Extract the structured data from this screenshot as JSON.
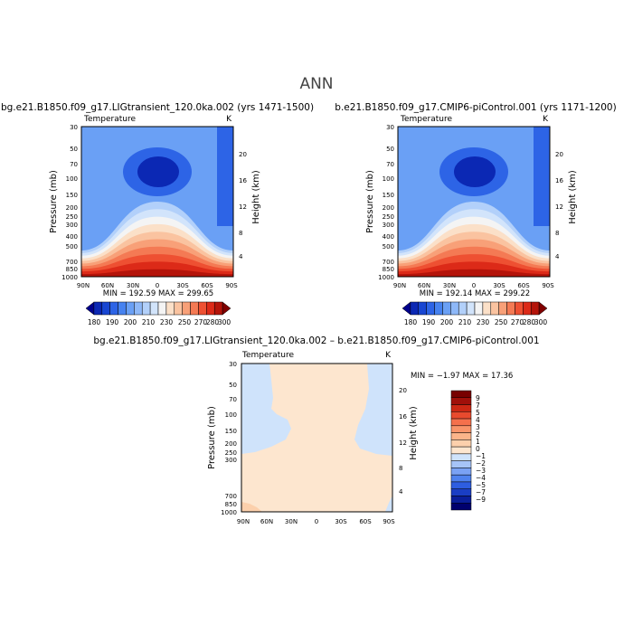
{
  "figure": {
    "title": "ANN"
  },
  "colors": {
    "abs_scale": [
      "#00008c",
      "#0b28b4",
      "#1846d2",
      "#2d64e6",
      "#4682f0",
      "#6aa0f5",
      "#8eb8f8",
      "#b2d0fa",
      "#d2e4fb",
      "#f4f4f4",
      "#fbe0c8",
      "#fac3a0",
      "#f8a078",
      "#f47a54",
      "#ee5032",
      "#dc2a18",
      "#b4140a",
      "#800000"
    ],
    "diff_scale": [
      "#00006e",
      "#0a1e9a",
      "#1a3ec4",
      "#2e5ee0",
      "#4f82ee",
      "#7aa2f4",
      "#a6c4f8",
      "#cfe3fb",
      "#fde6cf",
      "#fcd0ac",
      "#fbb48a",
      "#f8946a",
      "#f4704c",
      "#e84a2e",
      "#cc2814",
      "#a0100a",
      "#780000"
    ],
    "diff_fill": "#fde6cf",
    "diff_blue": "#cfe3fb"
  },
  "chart_data": [
    {
      "type": "contour",
      "title": "bg.e21.B1850.f09_g17.LIGtransient_120.0ka.002 (yrs 1471-1500)",
      "variable_label": "Temperature",
      "units": "K",
      "ylabel": "Pressure (mb)",
      "y2label": "Height (km)",
      "x_ticks": [
        "90N",
        "60N",
        "30N",
        "0",
        "30S",
        "60S",
        "90S"
      ],
      "y_ticks": [
        "30",
        "50",
        "70",
        "100",
        "150",
        "200",
        "250",
        "300",
        "400",
        "500",
        "700",
        "850",
        "1000"
      ],
      "y2_ticks": [
        "20",
        "16",
        "12",
        "8",
        "4"
      ],
      "ylim_mb": [
        30,
        1000
      ],
      "minmax": "MIN = 192.59    MAX = 299.65",
      "min": 192.59,
      "max": 299.65,
      "colorbar_labels": [
        "180",
        "190",
        "200",
        "210",
        "220",
        "230",
        "240",
        "250",
        "260",
        "270",
        "280",
        "290",
        "300"
      ],
      "colorbar_levels": [
        180,
        185,
        190,
        195,
        200,
        205,
        210,
        215,
        220,
        225,
        230,
        235,
        240,
        245,
        250,
        255,
        260,
        265,
        270,
        275,
        280,
        285,
        290,
        295,
        300
      ]
    },
    {
      "type": "contour",
      "title": "b.e21.B1850.f09_g17.CMIP6-piControl.001 (yrs 1171-1200)",
      "variable_label": "Temperature",
      "units": "K",
      "ylabel": "Pressure (mb)",
      "y2label": "Height (km)",
      "x_ticks": [
        "90N",
        "60N",
        "30N",
        "0",
        "30S",
        "60S",
        "90S"
      ],
      "y_ticks": [
        "30",
        "50",
        "70",
        "100",
        "150",
        "200",
        "250",
        "300",
        "400",
        "500",
        "700",
        "850",
        "1000"
      ],
      "y2_ticks": [
        "20",
        "16",
        "12",
        "8",
        "4"
      ],
      "ylim_mb": [
        30,
        1000
      ],
      "minmax": "MIN = 192.14    MAX = 299.22",
      "min": 192.14,
      "max": 299.22,
      "colorbar_labels": [
        "180",
        "190",
        "200",
        "210",
        "220",
        "230",
        "240",
        "250",
        "260",
        "270",
        "280",
        "290",
        "300"
      ],
      "colorbar_levels": [
        180,
        185,
        190,
        195,
        200,
        205,
        210,
        215,
        220,
        225,
        230,
        235,
        240,
        245,
        250,
        255,
        260,
        265,
        270,
        275,
        280,
        285,
        290,
        295,
        300
      ]
    },
    {
      "type": "contour",
      "title": "bg.e21.B1850.f09_g17.LIGtransient_120.0ka.002 – b.e21.B1850.f09_g17.CMIP6-piControl.001",
      "variable_label": "Temperature",
      "units": "K",
      "ylabel": "Pressure (mb)",
      "y2label": "Height (km)",
      "x_ticks": [
        "90N",
        "60N",
        "30N",
        "0",
        "30S",
        "60S",
        "90S"
      ],
      "y_ticks": [
        "30",
        "50",
        "70",
        "100",
        "150",
        "200",
        "250",
        "300",
        "700",
        "850",
        "1000"
      ],
      "y2_ticks": [
        "20",
        "16",
        "12",
        "8",
        "4"
      ],
      "ylim_mb": [
        30,
        1000
      ],
      "minmax": "MIN =  −1.97    MAX =  17.36",
      "min": -1.97,
      "max": 17.36,
      "colorbar_labels": [
        "9",
        "7",
        "5",
        "4",
        "3",
        "2",
        "1",
        "0",
        "−1",
        "−2",
        "−3",
        "−4",
        "−5",
        "−7",
        "−9"
      ],
      "colorbar_levels": [
        -9,
        -7,
        -5,
        -4,
        -3,
        -2,
        -1,
        0,
        1,
        2,
        3,
        4,
        5,
        7,
        9
      ]
    }
  ]
}
